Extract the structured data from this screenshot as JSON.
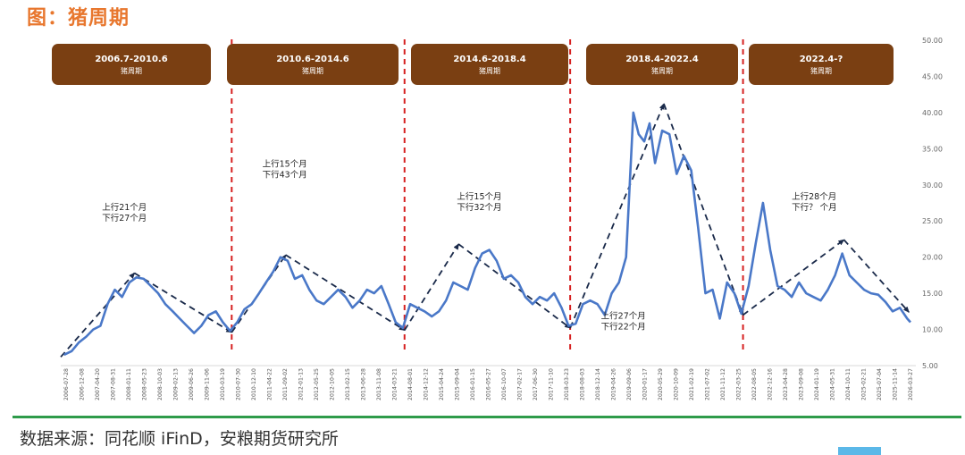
{
  "title": "图：猪周期",
  "source": "数据来源：同花顺 iFinD，安粮期货研究所",
  "colors": {
    "title": "#e8772e",
    "box": "#7a3f12",
    "line": "#4a78c8",
    "divider": "#d62020",
    "trend": "#1a2a4a",
    "rule": "#2e9b4a"
  },
  "chart_data": {
    "type": "line",
    "ylim": [
      5,
      50
    ],
    "yticks": [
      "5.00",
      "10.00",
      "15.00",
      "20.00",
      "25.00",
      "30.00",
      "35.00",
      "40.00",
      "45.00",
      "50.00"
    ],
    "x_ticks": [
      "2006-07-28",
      "2006-12-08",
      "2007-04-20",
      "2007-08-31",
      "2008-01-11",
      "2008-05-23",
      "2008-10-03",
      "2009-02-13",
      "2009-06-26",
      "2009-11-06",
      "2010-03-19",
      "2010-07-30",
      "2010-12-10",
      "2011-04-22",
      "2011-09-02",
      "2012-01-13",
      "2012-05-25",
      "2012-10-05",
      "2013-02-15",
      "2013-06-28",
      "2013-11-08",
      "2014-03-21",
      "2014-08-01",
      "2014-12-12",
      "2015-04-24",
      "2015-09-04",
      "2016-01-15",
      "2016-05-27",
      "2016-10-07",
      "2017-02-17",
      "2017-06-30",
      "2017-11-10",
      "2018-03-23",
      "2018-08-03",
      "2018-12-14",
      "2019-04-26",
      "2019-09-06",
      "2020-01-17",
      "2020-05-29",
      "2020-10-09",
      "2021-02-19",
      "2021-07-02",
      "2021-11-12",
      "2022-03-25",
      "2022-08-05",
      "2022-12-16",
      "2023-04-28",
      "2023-09-08",
      "2024-01-19",
      "2024-05-31",
      "2024-10-11",
      "2025-02-21",
      "2025-07-04",
      "2025-11-14",
      "2026-03-27"
    ],
    "periods": [
      {
        "range": "2006.7-2010.6",
        "label": "猪周期"
      },
      {
        "range": "2010.6-2014.6",
        "label": "猪周期"
      },
      {
        "range": "2014.6-2018.4",
        "label": "猪周期"
      },
      {
        "range": "2018.4-2022.4",
        "label": "猪周期"
      },
      {
        "range": "2022.4-?",
        "label": "猪周期"
      }
    ],
    "annotations": [
      {
        "lines": [
          "上行21个月",
          "下行27个月"
        ],
        "x": "2007-06-15",
        "y": 26.5
      },
      {
        "lines": [
          "上行15个月",
          "下行43个月"
        ],
        "x": "2011-03-01",
        "y": 32.5
      },
      {
        "lines": [
          "上行15个月",
          "下行32个月"
        ],
        "x": "2015-09-01",
        "y": 28.0
      },
      {
        "lines": [
          "上行27个月",
          "下行22个月"
        ],
        "x": "2019-01-01",
        "y": 11.5
      },
      {
        "lines": [
          "上行28个月",
          "下行？ 个月"
        ],
        "x": "2023-06-01",
        "y": 28.0
      }
    ],
    "dividers": [
      "2010-06-15",
      "2014-06-15",
      "2018-04-15",
      "2022-04-15"
    ],
    "trend_lines": [
      {
        "points": [
          [
            "2006-07-01",
            6.2
          ],
          [
            "2008-03-15",
            17.8
          ],
          [
            "2010-06-15",
            9.6
          ]
        ]
      },
      {
        "points": [
          [
            "2010-06-15",
            9.6
          ],
          [
            "2011-09-15",
            20.3
          ],
          [
            "2014-06-15",
            9.9
          ]
        ]
      },
      {
        "points": [
          [
            "2014-06-15",
            9.9
          ],
          [
            "2015-09-15",
            21.8
          ],
          [
            "2018-04-15",
            10.2
          ]
        ]
      },
      {
        "points": [
          [
            "2018-04-15",
            10.2
          ],
          [
            "2020-06-15",
            41.2
          ],
          [
            "2022-04-15",
            12.0
          ]
        ]
      },
      {
        "points": [
          [
            "2022-04-15",
            12.0
          ],
          [
            "2024-08-15",
            22.4
          ],
          [
            "2026-02-15",
            12.4
          ]
        ]
      }
    ],
    "series": [
      {
        "values": [
          [
            "2006-07-28",
            6.5
          ],
          [
            "2006-10-01",
            7.0
          ],
          [
            "2006-12-01",
            8.2
          ],
          [
            "2007-02-01",
            9.0
          ],
          [
            "2007-04-01",
            10.0
          ],
          [
            "2007-06-01",
            10.5
          ],
          [
            "2007-08-01",
            13.5
          ],
          [
            "2007-10-01",
            15.5
          ],
          [
            "2007-12-01",
            14.5
          ],
          [
            "2008-02-01",
            16.5
          ],
          [
            "2008-04-01",
            17.2
          ],
          [
            "2008-06-01",
            17.0
          ],
          [
            "2008-08-01",
            16.0
          ],
          [
            "2008-10-01",
            15.0
          ],
          [
            "2008-12-01",
            13.5
          ],
          [
            "2009-02-01",
            12.5
          ],
          [
            "2009-04-01",
            11.5
          ],
          [
            "2009-06-01",
            10.5
          ],
          [
            "2009-08-01",
            9.5
          ],
          [
            "2009-10-01",
            10.5
          ],
          [
            "2009-12-01",
            12.0
          ],
          [
            "2010-02-01",
            12.5
          ],
          [
            "2010-04-01",
            11.0
          ],
          [
            "2010-06-01",
            9.8
          ],
          [
            "2010-08-01",
            11.0
          ],
          [
            "2010-10-01",
            12.8
          ],
          [
            "2010-12-01",
            13.5
          ],
          [
            "2011-02-01",
            15.0
          ],
          [
            "2011-04-01",
            16.5
          ],
          [
            "2011-06-01",
            18.0
          ],
          [
            "2011-08-01",
            20.0
          ],
          [
            "2011-10-01",
            19.5
          ],
          [
            "2011-12-01",
            17.0
          ],
          [
            "2012-02-01",
            17.5
          ],
          [
            "2012-04-01",
            15.5
          ],
          [
            "2012-06-01",
            14.0
          ],
          [
            "2012-08-01",
            13.5
          ],
          [
            "2012-10-01",
            14.5
          ],
          [
            "2012-12-01",
            15.5
          ],
          [
            "2013-02-01",
            14.5
          ],
          [
            "2013-04-01",
            13.0
          ],
          [
            "2013-06-01",
            14.0
          ],
          [
            "2013-08-01",
            15.5
          ],
          [
            "2013-10-01",
            15.0
          ],
          [
            "2013-12-01",
            16.0
          ],
          [
            "2014-02-01",
            13.5
          ],
          [
            "2014-04-01",
            11.0
          ],
          [
            "2014-06-01",
            10.2
          ],
          [
            "2014-08-01",
            13.5
          ],
          [
            "2014-10-01",
            13.0
          ],
          [
            "2014-12-01",
            12.5
          ],
          [
            "2015-02-01",
            11.8
          ],
          [
            "2015-04-01",
            12.5
          ],
          [
            "2015-06-01",
            14.0
          ],
          [
            "2015-08-01",
            16.5
          ],
          [
            "2015-10-01",
            16.0
          ],
          [
            "2015-12-01",
            15.5
          ],
          [
            "2016-02-01",
            18.5
          ],
          [
            "2016-04-01",
            20.5
          ],
          [
            "2016-06-01",
            21.0
          ],
          [
            "2016-08-01",
            19.5
          ],
          [
            "2016-10-01",
            17.0
          ],
          [
            "2016-12-01",
            17.5
          ],
          [
            "2017-02-01",
            16.5
          ],
          [
            "2017-04-01",
            14.5
          ],
          [
            "2017-06-01",
            13.5
          ],
          [
            "2017-08-01",
            14.5
          ],
          [
            "2017-10-01",
            14.0
          ],
          [
            "2017-12-01",
            15.0
          ],
          [
            "2018-02-01",
            13.0
          ],
          [
            "2018-04-01",
            10.5
          ],
          [
            "2018-06-01",
            10.8
          ],
          [
            "2018-08-01",
            13.5
          ],
          [
            "2018-10-01",
            14.0
          ],
          [
            "2018-12-01",
            13.5
          ],
          [
            "2019-02-01",
            12.0
          ],
          [
            "2019-04-01",
            15.0
          ],
          [
            "2019-06-01",
            16.5
          ],
          [
            "2019-08-01",
            20.0
          ],
          [
            "2019-10-01",
            40.0
          ],
          [
            "2019-11-15",
            37.0
          ],
          [
            "2020-01-01",
            36.0
          ],
          [
            "2020-02-15",
            38.5
          ],
          [
            "2020-04-01",
            33.0
          ],
          [
            "2020-06-01",
            37.5
          ],
          [
            "2020-08-01",
            37.0
          ],
          [
            "2020-10-01",
            31.5
          ],
          [
            "2020-12-01",
            34.0
          ],
          [
            "2021-02-01",
            32.0
          ],
          [
            "2021-04-01",
            24.0
          ],
          [
            "2021-06-01",
            15.0
          ],
          [
            "2021-08-01",
            15.5
          ],
          [
            "2021-10-01",
            11.5
          ],
          [
            "2021-12-01",
            16.5
          ],
          [
            "2022-02-01",
            15.0
          ],
          [
            "2022-04-01",
            12.2
          ],
          [
            "2022-06-01",
            16.0
          ],
          [
            "2022-08-01",
            22.0
          ],
          [
            "2022-10-01",
            27.5
          ],
          [
            "2022-12-01",
            21.0
          ],
          [
            "2023-02-01",
            16.0
          ],
          [
            "2023-04-01",
            15.5
          ],
          [
            "2023-06-01",
            14.5
          ],
          [
            "2023-08-01",
            16.5
          ],
          [
            "2023-10-01",
            15.0
          ],
          [
            "2023-12-01",
            14.5
          ],
          [
            "2024-02-01",
            14.0
          ],
          [
            "2024-04-01",
            15.5
          ],
          [
            "2024-06-01",
            17.5
          ],
          [
            "2024-08-01",
            20.5
          ],
          [
            "2024-10-01",
            17.5
          ],
          [
            "2024-12-01",
            16.5
          ],
          [
            "2025-02-01",
            15.5
          ],
          [
            "2025-04-01",
            15.0
          ],
          [
            "2025-06-01",
            14.8
          ],
          [
            "2025-08-01",
            13.8
          ],
          [
            "2025-10-01",
            12.5
          ],
          [
            "2025-12-01",
            13.0
          ],
          [
            "2026-02-01",
            11.5
          ],
          [
            "2026-03-01",
            11.0
          ]
        ]
      }
    ]
  }
}
